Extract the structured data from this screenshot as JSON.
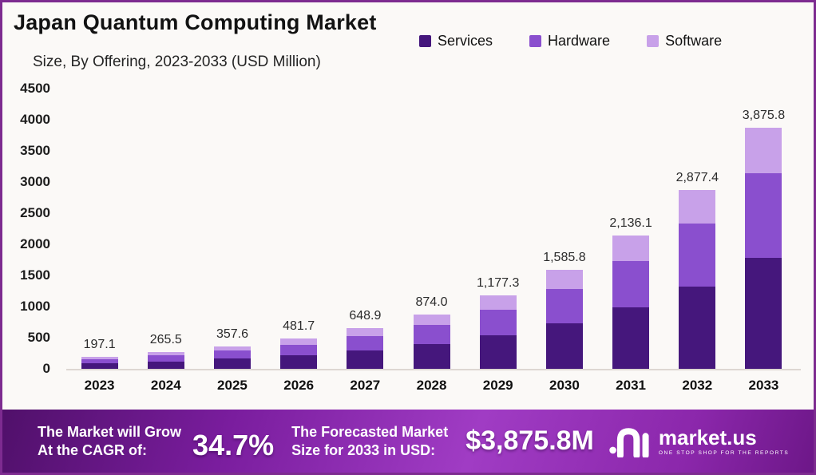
{
  "title": "Japan Quantum Computing Market",
  "subtitle": "Size, By Offering, 2023-2033 (USD Million)",
  "chart_data": {
    "type": "bar",
    "stacked": true,
    "title": "Japan Quantum Computing Market",
    "subtitle": "Size, By Offering, 2023-2033 (USD Million)",
    "xlabel": "",
    "ylabel": "USD Million",
    "ylim": [
      0,
      4500
    ],
    "grid": false,
    "legend_position": "top-right",
    "categories": [
      "2023",
      "2024",
      "2025",
      "2026",
      "2027",
      "2028",
      "2029",
      "2030",
      "2031",
      "2032",
      "2033"
    ],
    "totals": [
      197.1,
      265.5,
      357.6,
      481.7,
      648.9,
      874.0,
      1177.3,
      1585.8,
      2136.1,
      2877.4,
      3875.8
    ],
    "total_labels": [
      "197.1",
      "265.5",
      "357.6",
      "481.7",
      "648.9",
      "874.0",
      "1,177.3",
      "1,585.8",
      "2,136.1",
      "2,877.4",
      "3,875.8"
    ],
    "series": [
      {
        "name": "Services",
        "color": "#45177c",
        "values": [
          90.7,
          122.1,
          164.5,
          221.6,
          298.5,
          402.0,
          541.6,
          729.5,
          982.6,
          1323.6,
          1782.9
        ]
      },
      {
        "name": "Hardware",
        "color": "#8a4fce",
        "values": [
          69.0,
          92.9,
          125.2,
          168.6,
          227.1,
          305.9,
          412.1,
          555.0,
          747.6,
          1007.1,
          1356.5
        ]
      },
      {
        "name": "Software",
        "color": "#c8a1e9",
        "values": [
          37.4,
          50.5,
          67.9,
          91.5,
          123.3,
          166.1,
          223.6,
          301.3,
          405.9,
          546.7,
          736.4
        ]
      }
    ],
    "yticks": [
      "4500",
      "4000",
      "3500",
      "3000",
      "2500",
      "2000",
      "1500",
      "1000",
      "500",
      "0"
    ],
    "series_note": "segment values estimated from bar pixel proportions; printed labels are stack totals"
  },
  "banner": {
    "cagr_line1": "The Market will Grow",
    "cagr_line2": "At the CAGR of:",
    "cagr_value": "34.7%",
    "forecast_line1": "The Forecasted Market",
    "forecast_line2": "Size for 2033 in USD:",
    "forecast_value": "$3,875.8M",
    "logo_text": "market.us",
    "logo_tagline": "ONE STOP SHOP FOR THE REPORTS"
  },
  "colors": {
    "frame_border": "#7d2b90",
    "background": "#fbf9f7",
    "banner_gradient": [
      "#50106a",
      "#a03cc4",
      "#6d1788"
    ],
    "services": "#45177c",
    "hardware": "#8a4fce",
    "software": "#c8a1e9"
  }
}
